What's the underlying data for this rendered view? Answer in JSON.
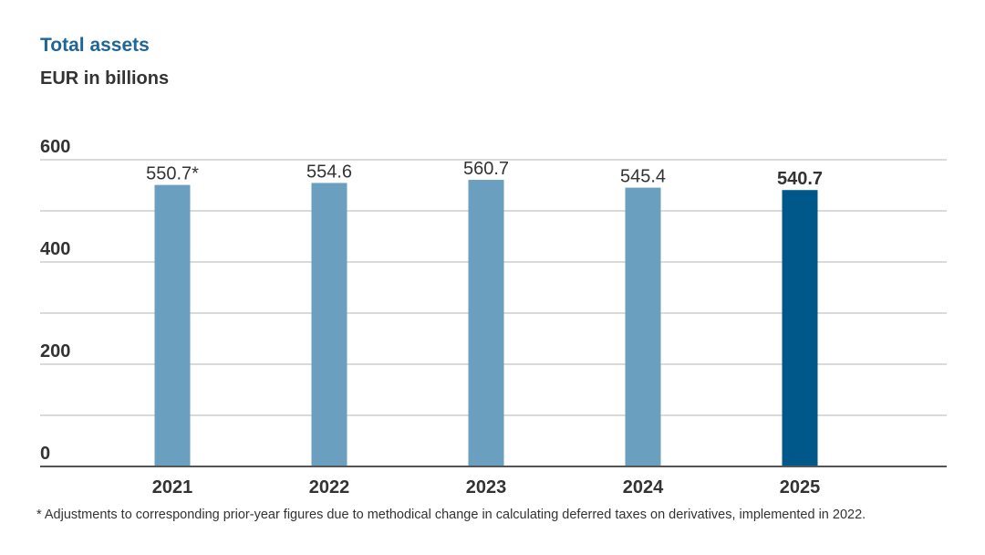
{
  "chart_data": {
    "type": "bar",
    "title": "Total assets",
    "subtitle": "EUR in billions",
    "categories": [
      "2021",
      "2022",
      "2023",
      "2024",
      "2025"
    ],
    "values": [
      550.7,
      554.6,
      560.7,
      545.4,
      540.7
    ],
    "data_labels": [
      "550.7*",
      "554.6",
      "560.7",
      "545.4",
      "540.7"
    ],
    "highlight_index": 4,
    "ylim": [
      0,
      600
    ],
    "y_ticks": [
      0,
      200,
      400,
      600
    ],
    "grid": true,
    "colors": {
      "bar": "#6a9fc0",
      "bar_highlight": "#00578a",
      "grid": "#b4b4b4",
      "axis": "#555555",
      "text": "#333333"
    },
    "footnote": "* Adjustments to corresponding prior-year figures due to methodical change in calculating deferred taxes on derivatives, implemented in 2022."
  }
}
